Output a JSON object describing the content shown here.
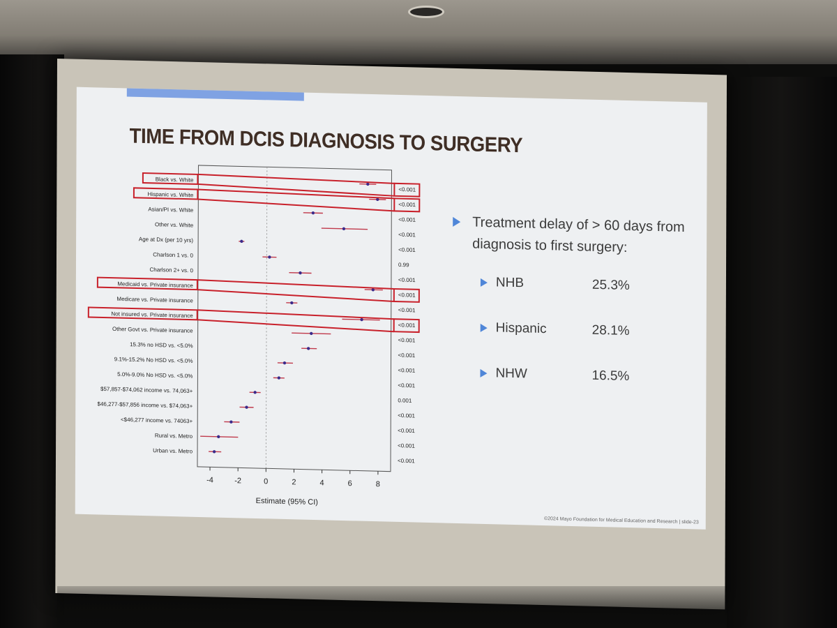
{
  "slide": {
    "title": "TIME FROM DCIS DIAGNOSIS TO SURGERY",
    "copyright": "©2024 Mayo Foundation for Medical Education and Research  |  slide-23"
  },
  "bullets": {
    "main": "Treatment delay of > 60 days from diagnosis to first surgery:",
    "items": [
      {
        "label": "NHB",
        "value": "25.3%"
      },
      {
        "label": "Hispanic",
        "value": "28.1%"
      },
      {
        "label": "NHW",
        "value": "16.5%"
      }
    ]
  },
  "colors": {
    "title": "#3f2e25",
    "accent_bar": "#7fa2e3",
    "ci_line": "#c0394b",
    "point": "#3b2a8a",
    "highlight_box": "#c8202a",
    "bullet_arrow": "#4f86d8"
  },
  "chart_data": {
    "type": "forest",
    "xlabel": "Estimate (95% CI)",
    "xlim": [
      -4.9,
      8.9
    ],
    "xticks": [
      "-4",
      "-2",
      "0",
      "2",
      "4",
      "6",
      "8"
    ],
    "reference_line": 0,
    "rows": [
      {
        "label": "Black vs. White",
        "estimate": 7.2,
        "lower": 6.6,
        "upper": 7.8,
        "p": "<0.001",
        "highlighted": true
      },
      {
        "label": "Hispanic vs. White",
        "estimate": 7.9,
        "lower": 7.3,
        "upper": 8.5,
        "p": "<0.001",
        "highlighted": true
      },
      {
        "label": "Asian/PI vs. White",
        "estimate": 3.3,
        "lower": 2.6,
        "upper": 4.0,
        "p": "<0.001",
        "highlighted": false
      },
      {
        "label": "Other vs. White",
        "estimate": 5.5,
        "lower": 3.9,
        "upper": 7.2,
        "p": "<0.001",
        "highlighted": false
      },
      {
        "label": "Age at Dx (per 10 yrs)",
        "estimate": -1.8,
        "lower": -2.0,
        "upper": -1.6,
        "p": "<0.001",
        "highlighted": false
      },
      {
        "label": "Charlson 1 vs. 0",
        "estimate": 0.2,
        "lower": -0.3,
        "upper": 0.7,
        "p": "0.99",
        "highlighted": false
      },
      {
        "label": "Charlson 2+ vs. 0",
        "estimate": 2.4,
        "lower": 1.6,
        "upper": 3.2,
        "p": "<0.001",
        "highlighted": false
      },
      {
        "label": "Medicaid vs. Private insurance",
        "estimate": 7.6,
        "lower": 7.0,
        "upper": 8.3,
        "p": "<0.001",
        "highlighted": true
      },
      {
        "label": "Medicare vs. Private insurance",
        "estimate": 1.8,
        "lower": 1.4,
        "upper": 2.2,
        "p": "<0.001",
        "highlighted": false
      },
      {
        "label": "Not insured vs. Private insurance",
        "estimate": 6.8,
        "lower": 5.4,
        "upper": 8.1,
        "p": "<0.001",
        "highlighted": true
      },
      {
        "label": "Other Govt vs. Private insurance",
        "estimate": 3.2,
        "lower": 1.8,
        "upper": 4.6,
        "p": "<0.001",
        "highlighted": false
      },
      {
        "label": "15.3% no HSD vs. <5.0%",
        "estimate": 3.0,
        "lower": 2.5,
        "upper": 3.6,
        "p": "<0.001",
        "highlighted": false
      },
      {
        "label": "9.1%-15.2% No HSD vs. <5.0%",
        "estimate": 1.3,
        "lower": 0.8,
        "upper": 1.9,
        "p": "<0.001",
        "highlighted": false
      },
      {
        "label": "5.0%-9.0% No HSD vs. <5.0%",
        "estimate": 0.9,
        "lower": 0.5,
        "upper": 1.3,
        "p": "<0.001",
        "highlighted": false
      },
      {
        "label": "$57,857-$74,062 income vs. 74,063+",
        "estimate": -0.8,
        "lower": -1.2,
        "upper": -0.4,
        "p": "0.001",
        "highlighted": false
      },
      {
        "label": "$46,277-$57,856 income vs. $74,063+",
        "estimate": -1.4,
        "lower": -1.9,
        "upper": -0.9,
        "p": "<0.001",
        "highlighted": false
      },
      {
        "label": "<$46,277 income vs. 74063+",
        "estimate": -2.5,
        "lower": -3.0,
        "upper": -1.9,
        "p": "<0.001",
        "highlighted": false
      },
      {
        "label": "Rural vs. Metro",
        "estimate": -3.4,
        "lower": -4.7,
        "upper": -2.0,
        "p": "<0.001",
        "highlighted": false
      },
      {
        "label": "Urban vs. Metro",
        "estimate": -3.7,
        "lower": -4.1,
        "upper": -3.2,
        "p": "<0.001",
        "highlighted": false
      }
    ]
  }
}
